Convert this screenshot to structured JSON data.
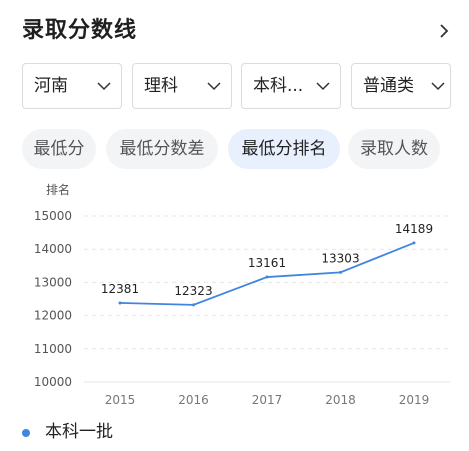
{
  "header": {
    "title": "录取分数线"
  },
  "filters": [
    {
      "label": "河南"
    },
    {
      "label": "理科"
    },
    {
      "label": "本科..."
    },
    {
      "label": "普通类"
    }
  ],
  "tabs": [
    {
      "label": "最低分",
      "active": false
    },
    {
      "label": "最低分数差",
      "active": false
    },
    {
      "label": "最低分排名",
      "active": true
    },
    {
      "label": "录取人数",
      "active": false
    }
  ],
  "colors": {
    "accent": "#3f86e0",
    "active_tab_bg": "#e8f0fd"
  },
  "chart_data": {
    "type": "line",
    "ylabel": "排名",
    "x": [
      "2015",
      "2016",
      "2017",
      "2018",
      "2019"
    ],
    "series": [
      {
        "name": "本科一批",
        "values": [
          12381,
          12323,
          13161,
          13303,
          14189
        ]
      }
    ],
    "ylim": [
      10000,
      15000
    ],
    "yticks": [
      15000,
      14000,
      13000,
      12000,
      11000,
      10000
    ],
    "grid": true,
    "legend": "bottom-left"
  }
}
